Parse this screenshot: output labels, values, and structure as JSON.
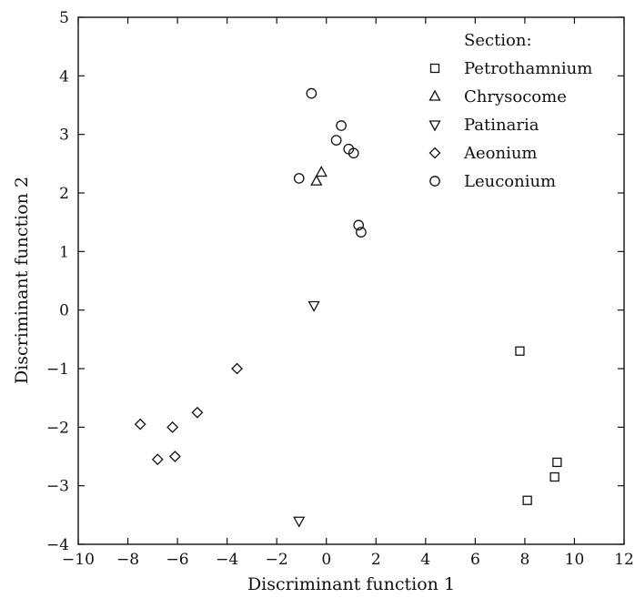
{
  "chart_data": {
    "type": "scatter",
    "title": "",
    "xlabel": "Discriminant function 1",
    "ylabel": "Discriminant function 2",
    "xlim": [
      -10,
      12
    ],
    "ylim": [
      -4,
      5
    ],
    "xticks": [
      -10,
      -8,
      -6,
      -4,
      -2,
      0,
      2,
      4,
      6,
      8,
      10,
      12
    ],
    "yticks": [
      -4,
      -3,
      -2,
      -1,
      0,
      1,
      2,
      3,
      4,
      5
    ],
    "x_tick_labels": [
      "−10",
      "−8",
      "−6",
      "−4",
      "−2",
      "0",
      "2",
      "4",
      "6",
      "8",
      "10",
      "12"
    ],
    "y_tick_labels": [
      "−4",
      "−3",
      "−2",
      "−1",
      "0",
      "1",
      "2",
      "3",
      "4",
      "5"
    ],
    "grid": false,
    "legend": {
      "title": "Section:",
      "position": "top-right"
    },
    "series": [
      {
        "name": "Petrothamnium",
        "marker": "square",
        "points": [
          [
            7.8,
            -0.7
          ],
          [
            9.3,
            -2.6
          ],
          [
            9.2,
            -2.85
          ],
          [
            8.1,
            -3.25
          ]
        ]
      },
      {
        "name": "Chrysocome",
        "marker": "triangle-up",
        "points": [
          [
            -0.2,
            2.35
          ],
          [
            -0.4,
            2.2
          ]
        ]
      },
      {
        "name": "Patinaria",
        "marker": "triangle-down",
        "points": [
          [
            -0.5,
            0.08
          ],
          [
            -1.1,
            -3.6
          ]
        ]
      },
      {
        "name": "Aeonium",
        "marker": "diamond",
        "points": [
          [
            -7.5,
            -1.95
          ],
          [
            -6.8,
            -2.55
          ],
          [
            -6.2,
            -2.0
          ],
          [
            -6.1,
            -2.5
          ],
          [
            -5.2,
            -1.75
          ],
          [
            -3.6,
            -1.0
          ]
        ]
      },
      {
        "name": "Leuconium",
        "marker": "circle",
        "points": [
          [
            -0.6,
            3.7
          ],
          [
            0.6,
            3.15
          ],
          [
            0.4,
            2.9
          ],
          [
            0.9,
            2.75
          ],
          [
            1.1,
            2.68
          ],
          [
            -1.1,
            2.25
          ],
          [
            1.3,
            1.45
          ],
          [
            1.4,
            1.33
          ]
        ]
      }
    ]
  }
}
